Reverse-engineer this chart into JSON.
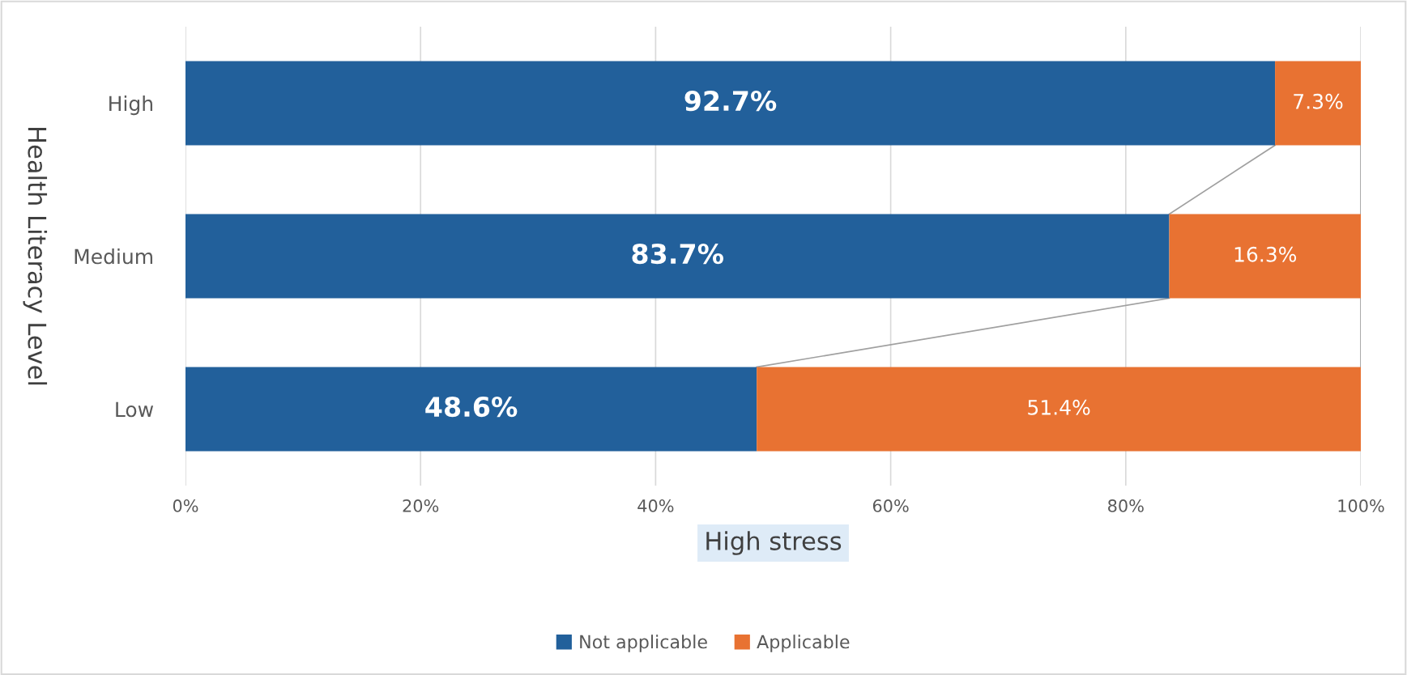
{
  "chart_data": {
    "type": "bar",
    "orientation": "horizontal",
    "stacked": true,
    "categories": [
      "High",
      "Medium",
      "Low"
    ],
    "series": [
      {
        "name": "Not applicable",
        "color": "#22609b",
        "values": [
          92.7,
          83.7,
          48.6
        ],
        "value_labels": [
          "92.7%",
          "83.7%",
          "48.6%"
        ]
      },
      {
        "name": "Applicable",
        "color": "#e87232",
        "values": [
          7.3,
          16.3,
          51.4
        ],
        "value_labels": [
          "7.3%",
          "16.3%",
          "51.4%"
        ]
      }
    ],
    "xlabel": "High stress",
    "ylabel": "Health Literacy Level",
    "xlim": [
      0,
      100
    ],
    "xticks": [
      {
        "value": 0,
        "label": "0%"
      },
      {
        "value": 20,
        "label": "20%"
      },
      {
        "value": 40,
        "label": "40%"
      },
      {
        "value": 60,
        "label": "60%"
      },
      {
        "value": 80,
        "label": "80%"
      },
      {
        "value": 100,
        "label": "100%"
      }
    ],
    "grid": "x",
    "legend": "bottom"
  }
}
